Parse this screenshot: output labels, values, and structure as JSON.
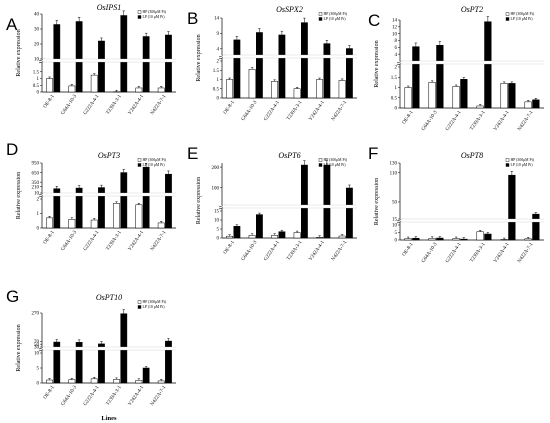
{
  "figure": {
    "legend": {
      "hp": "HP (300μM Pi)",
      "lp": "LP (10 μM Pi)"
    },
    "colors": {
      "hp": "#ffffff",
      "lp": "#000000",
      "axis": "#000000"
    }
  },
  "chart_data": [
    {
      "type": "bar",
      "panel": "A",
      "title": "OsIPS1",
      "ylabel": "Relative expression",
      "xlabel": "",
      "categories": [
        "OE-8-1",
        "G64A-10-3",
        "G222A-4-1",
        "T239A-3-1",
        "V242A-4-1",
        "N422A-7-1"
      ],
      "series": [
        {
          "name": "HP (300μM Pi)",
          "values": [
            1.0,
            0.45,
            1.25,
            0.02,
            0.3,
            0.3
          ]
        },
        {
          "name": "LP (10 μM Pi)",
          "values": [
            33,
            35,
            22,
            39,
            25,
            26
          ]
        }
      ],
      "break": {
        "low": [
          0,
          2
        ],
        "high": [
          10,
          40
        ],
        "ticks_low": [
          0,
          0.5,
          1,
          1.5
        ],
        "ticks_high": [
          10,
          20,
          30,
          40
        ]
      }
    },
    {
      "type": "bar",
      "panel": "B",
      "title": "OsSPX2",
      "ylabel": "Relative expression",
      "xlabel": "",
      "categories": [
        "OE-8-1",
        "G64A-10-3",
        "G222A-4-1",
        "T239A-3-1",
        "V242A-4-1",
        "N422A-7-1"
      ],
      "series": [
        {
          "name": "HP (300μM Pi)",
          "values": [
            1.0,
            1.55,
            0.9,
            0.5,
            1.0,
            0.95
          ]
        },
        {
          "name": "LP (10 μM Pi)",
          "values": [
            6.9,
            9.3,
            8.5,
            12.5,
            5.7,
            4.1
          ]
        }
      ],
      "break": {
        "low": [
          0,
          2
        ],
        "high": [
          2,
          14
        ],
        "ticks_low": [
          0,
          0.5,
          1,
          1.5,
          2
        ],
        "ticks_high": [
          4,
          9,
          14
        ]
      }
    },
    {
      "type": "bar",
      "panel": "C",
      "title": "OsPT2",
      "ylabel": "Relative expression",
      "xlabel": "",
      "categories": [
        "OE-8-1",
        "G64A-10-3",
        "G222A-4-1",
        "T239A-3-1",
        "V242A-4-1",
        "N422A-7-1"
      ],
      "series": [
        {
          "name": "HP (300μM Pi)",
          "values": [
            1.0,
            1.25,
            1.05,
            0.1,
            1.2,
            0.3
          ]
        },
        {
          "name": "LP (10 μM Pi)",
          "values": [
            6.2,
            6.6,
            1.4,
            13.5,
            1.2,
            0.4
          ]
        }
      ],
      "break": {
        "low": [
          0,
          2
        ],
        "high": [
          2,
          14
        ],
        "ticks_low": [
          0,
          0.5,
          1,
          1.5,
          2
        ],
        "ticks_high": [
          4,
          6,
          8,
          10,
          12,
          14
        ]
      }
    },
    {
      "type": "bar",
      "panel": "D",
      "title": "OsPT3",
      "ylabel": "Relative expression",
      "xlabel": "",
      "categories": [
        "OE-8-1",
        "G64A-10-3",
        "G222A-4-1",
        "T239A-3-1",
        "V242A-4-1",
        "N422A-7-1"
      ],
      "series": [
        {
          "name": "HP (300μM Pi)",
          "values": [
            0.7,
            0.6,
            0.55,
            1.7,
            1.6,
            0.35
          ]
        },
        {
          "name": "LP (10 μM Pi)",
          "values": [
            145,
            165,
            180,
            650,
            820,
            600
          ]
        }
      ],
      "break": {
        "low": [
          0,
          2
        ],
        "high": [
          10,
          950
        ],
        "ticks_low": [
          0,
          1,
          2
        ],
        "ticks_high": [
          10,
          210,
          350,
          650,
          950
        ]
      }
    },
    {
      "type": "bar",
      "panel": "E",
      "title": "OsPT6",
      "ylabel": "Relative expression",
      "xlabel": "",
      "categories": [
        "OE-8-1",
        "G64A-10-3",
        "G222A-4-1",
        "T239A-3-1",
        "V242A-4-1",
        "N422A-7-1"
      ],
      "series": [
        {
          "name": "HP (300μM Pi)",
          "values": [
            1.0,
            1.5,
            1.5,
            3.0,
            0.4,
            1.1
          ]
        },
        {
          "name": "LP (10 μM Pi)",
          "values": [
            6.5,
            13.0,
            3.5,
            210,
            210,
            98
          ]
        }
      ],
      "break": {
        "low": [
          0,
          15
        ],
        "high": [
          15,
          220
        ],
        "ticks_low": [
          0,
          5,
          10,
          15
        ],
        "ticks_high": [
          100,
          200
        ]
      }
    },
    {
      "type": "bar",
      "panel": "F",
      "title": "OsPT8",
      "ylabel": "Relative expression",
      "xlabel": "",
      "categories": [
        "OE-8-1",
        "G64A-10-3",
        "G222A-4-1",
        "T239A-3-1",
        "V242A-4-1",
        "N422A-7-1"
      ],
      "series": [
        {
          "name": "HP (300μM Pi)",
          "values": [
            1.0,
            1.1,
            1.0,
            5.5,
            0.3,
            0.8
          ]
        },
        {
          "name": "LP (10 μM Pi)",
          "values": [
            1.2,
            1.3,
            0.6,
            4.0,
            105,
            25
          ]
        }
      ],
      "break": {
        "low": [
          0,
          10
        ],
        "high": [
          15,
          130
        ],
        "ticks_low": [
          0,
          5,
          10
        ],
        "ticks_high": [
          15,
          50,
          110,
          130
        ]
      }
    },
    {
      "type": "bar",
      "panel": "G",
      "title": "OsPT10",
      "ylabel": "Relative expression",
      "xlabel": "Lines",
      "categories": [
        "OE-8-1",
        "G64A-10-3",
        "G222A-4-1",
        "T239A-3-1",
        "V242A-4-1",
        "N422A-7-1"
      ],
      "series": [
        {
          "name": "HP (300μM Pi)",
          "values": [
            1.0,
            1.1,
            1.4,
            1.2,
            0.9,
            0.7
          ]
        },
        {
          "name": "LP (10 μM Pi)",
          "values": [
            65,
            63,
            52,
            265,
            5.0,
            72
          ]
        }
      ],
      "break": {
        "low": [
          0,
          10
        ],
        "high": [
          30,
          270
        ],
        "ticks_low": [
          0,
          5,
          10
        ],
        "ticks_high": [
          30,
          50,
          70,
          270
        ]
      }
    }
  ]
}
